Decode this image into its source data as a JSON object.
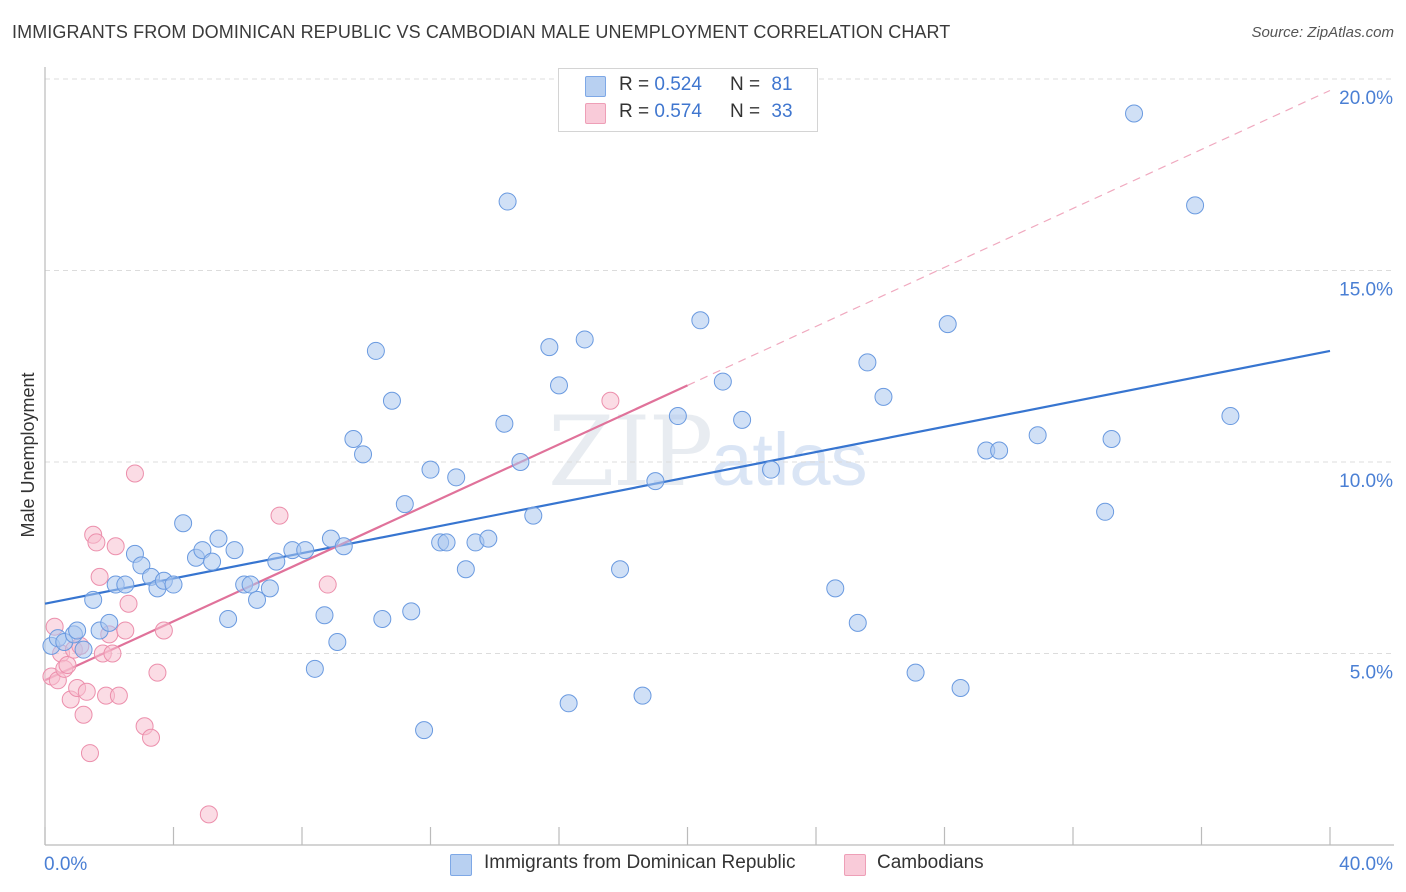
{
  "header": {
    "title": "IMMIGRANTS FROM DOMINICAN REPUBLIC VS CAMBODIAN MALE UNEMPLOYMENT CORRELATION CHART",
    "source": "Source: ZipAtlas.com"
  },
  "watermark": {
    "zip": "ZIP",
    "atlas": "atlas"
  },
  "legend_top": {
    "rows": [
      {
        "r_label": "R = ",
        "r_value": "0.524",
        "n_label": "N = ",
        "n_value": "81"
      },
      {
        "r_label": "R = ",
        "r_value": "0.574",
        "n_label": "N = ",
        "n_value": "33"
      }
    ]
  },
  "legend_bottom": {
    "items": [
      {
        "label": "Immigrants from Dominican Republic"
      },
      {
        "label": "Cambodians"
      }
    ]
  },
  "colors": {
    "blue_fill": "#a9c6ee",
    "blue_stroke": "#6a9ae0",
    "blue_line": "#3775d0",
    "pink_fill": "#f7bfd0",
    "pink_stroke": "#ec8fac",
    "pink_line": "#e0729a",
    "grid": "#dcdcdc",
    "axis": "#bbbbbb",
    "tick_text": "#4a7fd4"
  },
  "chart_data": {
    "type": "scatter",
    "title": "IMMIGRANTS FROM DOMINICAN REPUBLIC VS CAMBODIAN MALE UNEMPLOYMENT CORRELATION CHART",
    "xlabel": "",
    "ylabel": "Male Unemployment",
    "xlim": [
      0,
      40
    ],
    "ylim": [
      0,
      20
    ],
    "x_tick_labels": [
      "0.0%",
      "40.0%"
    ],
    "y_ticks": [
      5,
      10,
      15,
      20
    ],
    "y_tick_labels": [
      "5.0%",
      "10.0%",
      "15.0%",
      "20.0%"
    ],
    "grid": true,
    "legend_position": "top-center",
    "series": [
      {
        "name": "Immigrants from Dominican Republic",
        "stats": {
          "R": 0.524,
          "N": 81
        },
        "trend": {
          "x": [
            0,
            40
          ],
          "y": [
            6.3,
            12.9
          ]
        },
        "points": [
          [
            0.2,
            5.2
          ],
          [
            0.4,
            5.4
          ],
          [
            0.6,
            5.3
          ],
          [
            0.9,
            5.5
          ],
          [
            1.0,
            5.6
          ],
          [
            1.2,
            5.1
          ],
          [
            1.5,
            6.4
          ],
          [
            1.7,
            5.6
          ],
          [
            2.0,
            5.8
          ],
          [
            2.2,
            6.8
          ],
          [
            2.5,
            6.8
          ],
          [
            2.8,
            7.6
          ],
          [
            3.0,
            7.3
          ],
          [
            3.3,
            7.0
          ],
          [
            3.5,
            6.7
          ],
          [
            3.7,
            6.9
          ],
          [
            4.0,
            6.8
          ],
          [
            4.3,
            8.4
          ],
          [
            4.7,
            7.5
          ],
          [
            4.9,
            7.7
          ],
          [
            5.2,
            7.4
          ],
          [
            5.4,
            8.0
          ],
          [
            5.7,
            5.9
          ],
          [
            5.9,
            7.7
          ],
          [
            6.2,
            6.8
          ],
          [
            6.4,
            6.8
          ],
          [
            6.6,
            6.4
          ],
          [
            7.0,
            6.7
          ],
          [
            7.2,
            7.4
          ],
          [
            7.7,
            7.7
          ],
          [
            8.1,
            7.7
          ],
          [
            8.4,
            4.6
          ],
          [
            8.7,
            6.0
          ],
          [
            8.9,
            8.0
          ],
          [
            9.1,
            5.3
          ],
          [
            9.3,
            7.8
          ],
          [
            9.6,
            10.6
          ],
          [
            9.9,
            10.2
          ],
          [
            10.3,
            12.9
          ],
          [
            10.5,
            5.9
          ],
          [
            10.8,
            11.6
          ],
          [
            11.2,
            8.9
          ],
          [
            11.4,
            6.1
          ],
          [
            11.8,
            3.0
          ],
          [
            12.0,
            9.8
          ],
          [
            12.3,
            7.9
          ],
          [
            12.5,
            7.9
          ],
          [
            12.8,
            9.6
          ],
          [
            13.1,
            7.2
          ],
          [
            13.4,
            7.9
          ],
          [
            13.8,
            8.0
          ],
          [
            14.3,
            11.0
          ],
          [
            14.4,
            16.8
          ],
          [
            14.8,
            10.0
          ],
          [
            15.2,
            8.6
          ],
          [
            15.7,
            13.0
          ],
          [
            16.0,
            12.0
          ],
          [
            16.3,
            3.7
          ],
          [
            16.8,
            13.2
          ],
          [
            17.9,
            7.2
          ],
          [
            18.6,
            3.9
          ],
          [
            19.0,
            9.5
          ],
          [
            19.7,
            11.2
          ],
          [
            20.4,
            13.7
          ],
          [
            21.1,
            12.1
          ],
          [
            21.7,
            11.1
          ],
          [
            22.6,
            9.8
          ],
          [
            24.6,
            6.7
          ],
          [
            25.3,
            5.8
          ],
          [
            25.6,
            12.6
          ],
          [
            26.1,
            11.7
          ],
          [
            27.1,
            4.5
          ],
          [
            28.1,
            13.6
          ],
          [
            28.5,
            4.1
          ],
          [
            29.3,
            10.3
          ],
          [
            29.7,
            10.3
          ],
          [
            30.9,
            10.7
          ],
          [
            33.0,
            8.7
          ],
          [
            33.2,
            10.6
          ],
          [
            33.9,
            19.1
          ],
          [
            35.8,
            16.7
          ],
          [
            36.9,
            11.2
          ]
        ]
      },
      {
        "name": "Cambodians",
        "stats": {
          "R": 0.574,
          "N": 33
        },
        "trend": {
          "x": [
            0,
            20
          ],
          "y": [
            4.3,
            12.0
          ]
        },
        "trend_extension": {
          "x": [
            20,
            40
          ],
          "y": [
            12.0,
            19.7
          ]
        },
        "points": [
          [
            0.2,
            4.4
          ],
          [
            0.3,
            5.7
          ],
          [
            0.4,
            4.3
          ],
          [
            0.5,
            5.0
          ],
          [
            0.6,
            4.6
          ],
          [
            0.7,
            4.7
          ],
          [
            0.8,
            3.8
          ],
          [
            0.9,
            5.1
          ],
          [
            1.0,
            4.1
          ],
          [
            1.1,
            5.2
          ],
          [
            1.2,
            3.4
          ],
          [
            1.3,
            4.0
          ],
          [
            1.4,
            2.4
          ],
          [
            1.5,
            8.1
          ],
          [
            1.6,
            7.9
          ],
          [
            1.7,
            7.0
          ],
          [
            1.8,
            5.0
          ],
          [
            1.9,
            3.9
          ],
          [
            2.0,
            5.5
          ],
          [
            2.1,
            5.0
          ],
          [
            2.2,
            7.8
          ],
          [
            2.3,
            3.9
          ],
          [
            2.5,
            5.6
          ],
          [
            2.6,
            6.3
          ],
          [
            2.8,
            9.7
          ],
          [
            3.1,
            3.1
          ],
          [
            3.3,
            2.8
          ],
          [
            3.5,
            4.5
          ],
          [
            3.7,
            5.6
          ],
          [
            5.1,
            0.8
          ],
          [
            7.3,
            8.6
          ],
          [
            8.8,
            6.8
          ],
          [
            17.6,
            11.6
          ]
        ]
      }
    ]
  }
}
